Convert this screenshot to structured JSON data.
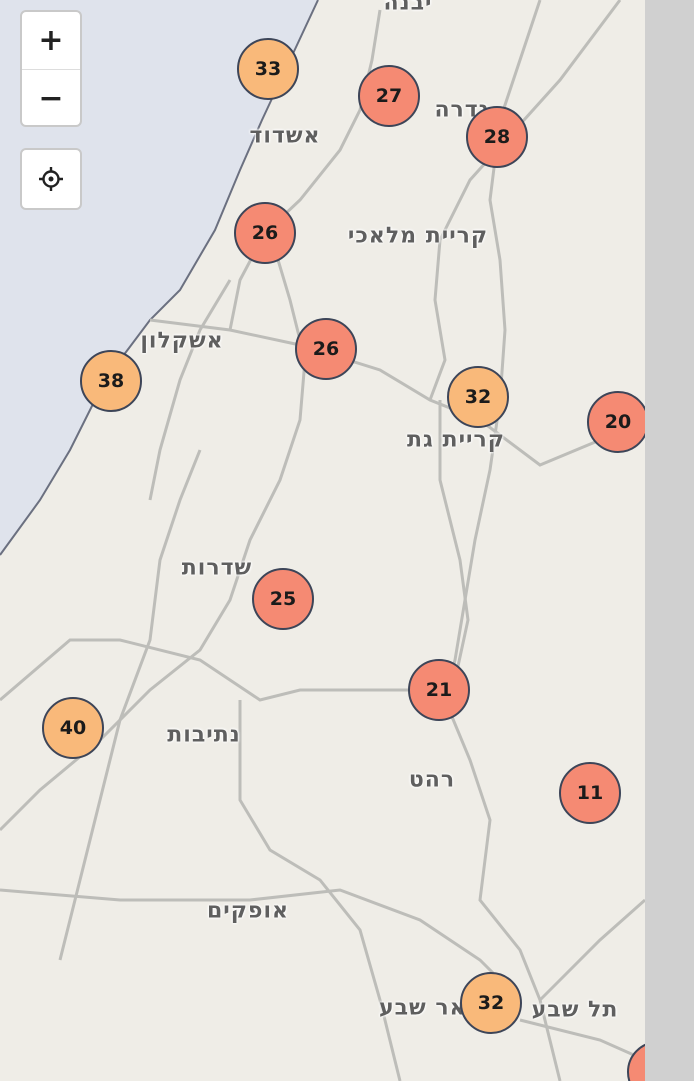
{
  "controls": {
    "zoom_in": "+",
    "zoom_out": "−",
    "locate_icon": "crosshair-icon"
  },
  "colors": {
    "sea": "#dfe3ec",
    "land": "#efede7",
    "road": "#b9b9b6",
    "marker_orange": "#f9b97a",
    "marker_red": "#f58a73",
    "marker_border": "#3d4558"
  },
  "places": [
    {
      "name": "יבנה"
    },
    {
      "name": "גדרה"
    },
    {
      "name": "אשדוד"
    },
    {
      "name": "קריית מלאכי"
    },
    {
      "name": "אשקלון"
    },
    {
      "name": "קריית גת"
    },
    {
      "name": "שדרות"
    },
    {
      "name": "נתיבות"
    },
    {
      "name": "רהט"
    },
    {
      "name": "אופקים"
    },
    {
      "name": "באר שבע"
    },
    {
      "name": "תל שבע"
    }
  ],
  "clusters": [
    {
      "count": "33",
      "level": "orange"
    },
    {
      "count": "27",
      "level": "red"
    },
    {
      "count": "28",
      "level": "red"
    },
    {
      "count": "26",
      "level": "red"
    },
    {
      "count": "26",
      "level": "red"
    },
    {
      "count": "38",
      "level": "orange"
    },
    {
      "count": "32",
      "level": "orange"
    },
    {
      "count": "20",
      "level": "red"
    },
    {
      "count": "25",
      "level": "red"
    },
    {
      "count": "21",
      "level": "red"
    },
    {
      "count": "40",
      "level": "orange"
    },
    {
      "count": "11",
      "level": "red"
    },
    {
      "count": "32",
      "level": "orange"
    },
    {
      "count": "",
      "level": "red"
    }
  ]
}
